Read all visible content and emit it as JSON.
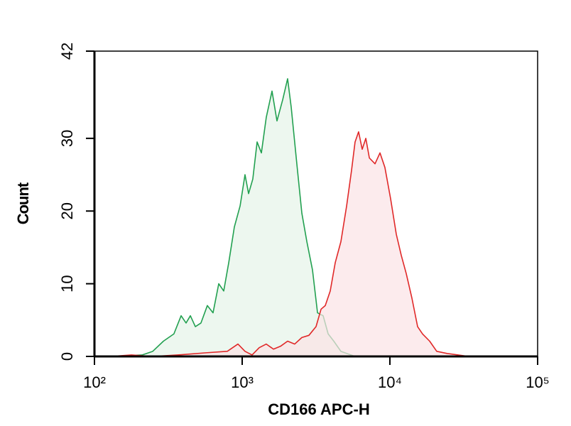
{
  "chart_data": {
    "type": "histogram-overlay",
    "xlabel": "CD166 APC-H",
    "ylabel": "Count",
    "xscale": "log",
    "xlim": [
      100,
      100000
    ],
    "xticks": [
      {
        "value": 100,
        "label": "10²"
      },
      {
        "value": 1000,
        "label": "10³"
      },
      {
        "value": 10000,
        "label": "10⁴"
      },
      {
        "value": 100000,
        "label": "10⁵"
      }
    ],
    "ylim": [
      0,
      42
    ],
    "yticks": [
      0,
      10,
      20,
      30,
      42
    ],
    "series": [
      {
        "color": "#22a050",
        "fill": "#e6f4e8",
        "x": [
          128,
          210,
          248,
          293,
          345,
          386,
          417,
          446,
          482,
          526,
          581,
          635,
          694,
          750,
          811,
          885,
          968,
          1045,
          1105,
          1180,
          1262,
          1349,
          1456,
          1592,
          1720,
          1880,
          2030,
          2147,
          2344,
          2535,
          2740,
          2992,
          3236,
          3532,
          3819,
          4170,
          4660,
          5810
        ],
        "values": [
          0,
          0.2,
          0.7,
          2.1,
          3.1,
          5.6,
          4.6,
          5.6,
          4.1,
          4.6,
          7,
          6,
          10,
          9,
          12.9,
          17.8,
          20.7,
          25,
          22.4,
          24.4,
          29.5,
          28,
          32.9,
          36.5,
          32.4,
          35.3,
          38.2,
          34.3,
          26.5,
          19.7,
          15.8,
          11.9,
          6,
          5.6,
          3.1,
          2.1,
          0.7,
          0
        ]
      },
      {
        "color": "#e02828",
        "fill": "#fbe3e6",
        "x": [
          128,
          178,
          248,
          365,
          569,
          793,
          936,
          1045,
          1167,
          1304,
          1456,
          1629,
          1818,
          2030,
          2268,
          2535,
          2830,
          3162,
          3420,
          3652,
          3945,
          4266,
          4660,
          5093,
          5500,
          5810,
          6138,
          6493,
          6870,
          7261,
          7930,
          8570,
          9250,
          10110,
          11050,
          11940,
          12900,
          14100,
          15400,
          16630,
          18580,
          20750,
          24500,
          28940,
          34200
        ],
        "values": [
          0,
          0.2,
          0,
          0.2,
          0.5,
          0.7,
          1.7,
          0.7,
          0.2,
          1.2,
          1.7,
          1,
          1.4,
          2.1,
          1.7,
          2.6,
          2.9,
          4.1,
          6.5,
          7,
          9,
          12.9,
          15.8,
          20.7,
          25.6,
          29.5,
          30.9,
          28.5,
          30,
          27.3,
          26.5,
          28,
          26,
          21.7,
          16.8,
          13.9,
          11.4,
          8,
          4.1,
          3.1,
          2.1,
          0.7,
          0.4,
          0.2,
          0
        ]
      }
    ]
  }
}
